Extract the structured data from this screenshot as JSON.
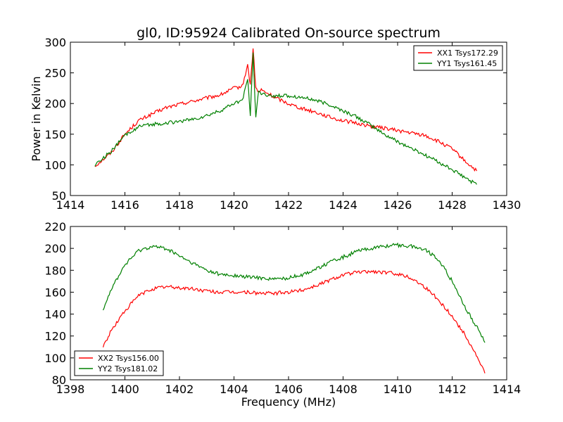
{
  "figure_title": "gl0, ID:95924 Calibrated On-source spectrum",
  "chart_data": [
    {
      "type": "line",
      "title": "gl0, ID:95924 Calibrated On-source spectrum",
      "xlabel": "",
      "ylabel": "Power in Kelvin",
      "xlim": [
        1414,
        1430
      ],
      "ylim": [
        50,
        300
      ],
      "xticks": [
        "1414",
        "1416",
        "1418",
        "1420",
        "1422",
        "1424",
        "1426",
        "1428",
        "1430"
      ],
      "yticks": [
        "50",
        "100",
        "150",
        "200",
        "250",
        "300"
      ],
      "legend_location": "upper right",
      "grid": false,
      "series": [
        {
          "name": "XX1 Tsys172.29",
          "color": "#ff0000",
          "x": [
            1414.9,
            1415.5,
            1416.0,
            1416.5,
            1417.0,
            1417.5,
            1418.0,
            1418.5,
            1419.0,
            1419.5,
            1420.0,
            1420.3,
            1420.5,
            1420.6,
            1420.7,
            1420.8,
            1420.9,
            1421.0,
            1421.5,
            1422.0,
            1422.5,
            1423.0,
            1423.5,
            1424.0,
            1424.5,
            1425.0,
            1425.5,
            1426.0,
            1426.5,
            1427.0,
            1427.5,
            1428.0,
            1428.5,
            1428.9
          ],
          "y": [
            98,
            120,
            150,
            172,
            183,
            193,
            199,
            204,
            209,
            214,
            225,
            228,
            262,
            230,
            290,
            225,
            218,
            222,
            210,
            200,
            192,
            186,
            178,
            172,
            168,
            163,
            160,
            156,
            152,
            148,
            138,
            126,
            105,
            90
          ]
        },
        {
          "name": "YY1 Tsys161.45",
          "color": "#008000",
          "x": [
            1414.9,
            1415.5,
            1416.0,
            1416.5,
            1417.0,
            1417.5,
            1418.0,
            1418.5,
            1419.0,
            1419.5,
            1420.0,
            1420.3,
            1420.5,
            1420.6,
            1420.7,
            1420.8,
            1420.9,
            1421.0,
            1421.5,
            1422.0,
            1422.5,
            1423.0,
            1423.5,
            1424.0,
            1424.5,
            1425.0,
            1425.5,
            1426.0,
            1426.5,
            1427.0,
            1427.5,
            1428.0,
            1428.5,
            1428.9
          ],
          "y": [
            100,
            122,
            148,
            162,
            166,
            168,
            171,
            174,
            180,
            188,
            200,
            205,
            240,
            180,
            285,
            175,
            222,
            215,
            212,
            213,
            210,
            205,
            198,
            188,
            178,
            165,
            150,
            138,
            127,
            116,
            105,
            92,
            78,
            68
          ]
        }
      ]
    },
    {
      "type": "line",
      "title": "",
      "xlabel": "Frequency (MHz)",
      "ylabel": "",
      "xlim": [
        1398,
        1414
      ],
      "ylim": [
        80,
        220
      ],
      "xticks": [
        "1398",
        "1400",
        "1402",
        "1404",
        "1406",
        "1408",
        "1410",
        "1412",
        "1414"
      ],
      "yticks": [
        "80",
        "100",
        "120",
        "140",
        "160",
        "180",
        "200",
        "220"
      ],
      "legend_location": "lower left",
      "grid": false,
      "series": [
        {
          "name": "XX2 Tsys156.00",
          "color": "#ff0000",
          "x": [
            1399.2,
            1399.5,
            1400.0,
            1400.5,
            1401.0,
            1401.5,
            1402.0,
            1402.5,
            1403.0,
            1403.5,
            1404.0,
            1404.5,
            1405.0,
            1405.5,
            1406.0,
            1406.5,
            1407.0,
            1407.5,
            1408.0,
            1408.5,
            1409.0,
            1409.5,
            1410.0,
            1410.5,
            1411.0,
            1411.5,
            1412.0,
            1412.5,
            1413.0,
            1413.2
          ],
          "y": [
            110,
            125,
            143,
            157,
            163,
            165,
            164,
            163,
            161,
            160,
            160,
            160,
            159,
            159,
            160,
            162,
            166,
            171,
            176,
            178,
            179,
            178,
            177,
            173,
            165,
            153,
            138,
            120,
            97,
            86
          ]
        },
        {
          "name": "YY2 Tsys181.02",
          "color": "#008000",
          "x": [
            1399.2,
            1399.5,
            1400.0,
            1400.5,
            1401.0,
            1401.5,
            1402.0,
            1402.5,
            1403.0,
            1403.5,
            1404.0,
            1404.5,
            1405.0,
            1405.5,
            1406.0,
            1406.5,
            1407.0,
            1407.5,
            1408.0,
            1408.5,
            1409.0,
            1409.5,
            1410.0,
            1410.5,
            1411.0,
            1411.5,
            1412.0,
            1412.5,
            1413.0,
            1413.2
          ],
          "y": [
            145,
            163,
            185,
            198,
            202,
            200,
            193,
            186,
            180,
            176,
            175,
            174,
            173,
            172,
            173,
            176,
            181,
            187,
            192,
            197,
            200,
            202,
            203,
            202,
            199,
            190,
            170,
            145,
            124,
            114
          ]
        }
      ]
    }
  ]
}
